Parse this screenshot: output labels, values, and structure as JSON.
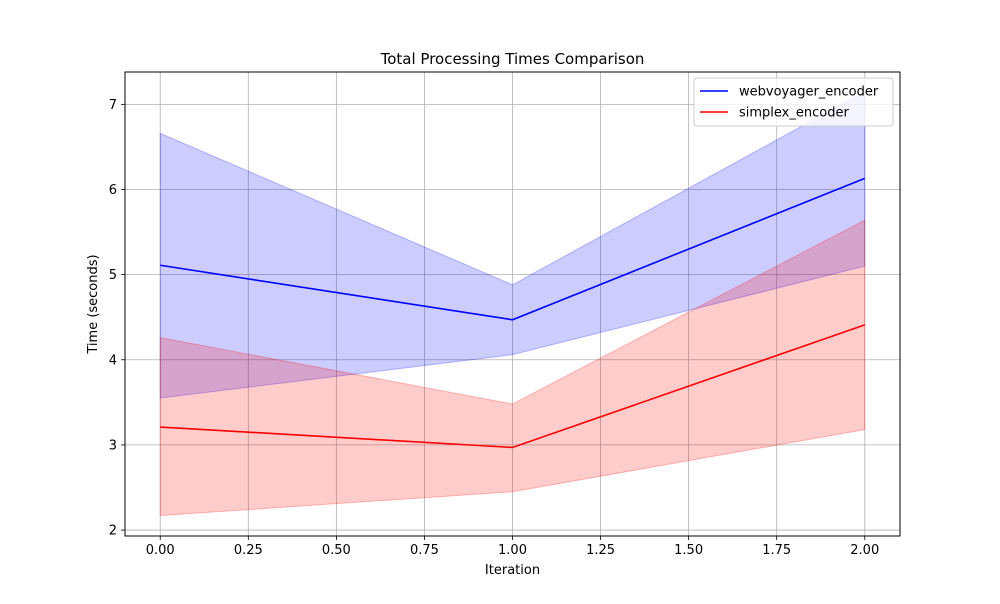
{
  "chart_data": {
    "type": "line",
    "title": "Total Processing Times Comparison",
    "xlabel": "Iteration",
    "ylabel": "Time (seconds)",
    "xlim": [
      -0.1,
      2.1
    ],
    "ylim": [
      1.93,
      7.38
    ],
    "xticks": [
      0.0,
      0.25,
      0.5,
      0.75,
      1.0,
      1.25,
      1.5,
      1.75,
      2.0
    ],
    "xtick_labels": [
      "0.00",
      "0.25",
      "0.50",
      "0.75",
      "1.00",
      "1.25",
      "1.50",
      "1.75",
      "2.00"
    ],
    "yticks": [
      2,
      3,
      4,
      5,
      6,
      7
    ],
    "ytick_labels": [
      "2",
      "3",
      "4",
      "5",
      "6",
      "7"
    ],
    "grid": true,
    "legend_position": "top-right",
    "x": [
      0,
      1,
      2
    ],
    "series": [
      {
        "name": "webvoyager_encoder",
        "color": "#0000ff",
        "fill_color": "#0000ff",
        "values": [
          5.11,
          4.47,
          6.13
        ],
        "lower": [
          3.55,
          4.06,
          5.1
        ],
        "upper": [
          6.66,
          4.88,
          7.15
        ]
      },
      {
        "name": "simplex_encoder",
        "color": "#ff0000",
        "fill_color": "#ff0000",
        "values": [
          3.21,
          2.97,
          4.41
        ],
        "lower": [
          2.17,
          2.45,
          3.18
        ],
        "upper": [
          4.26,
          3.48,
          5.64
        ]
      }
    ]
  }
}
